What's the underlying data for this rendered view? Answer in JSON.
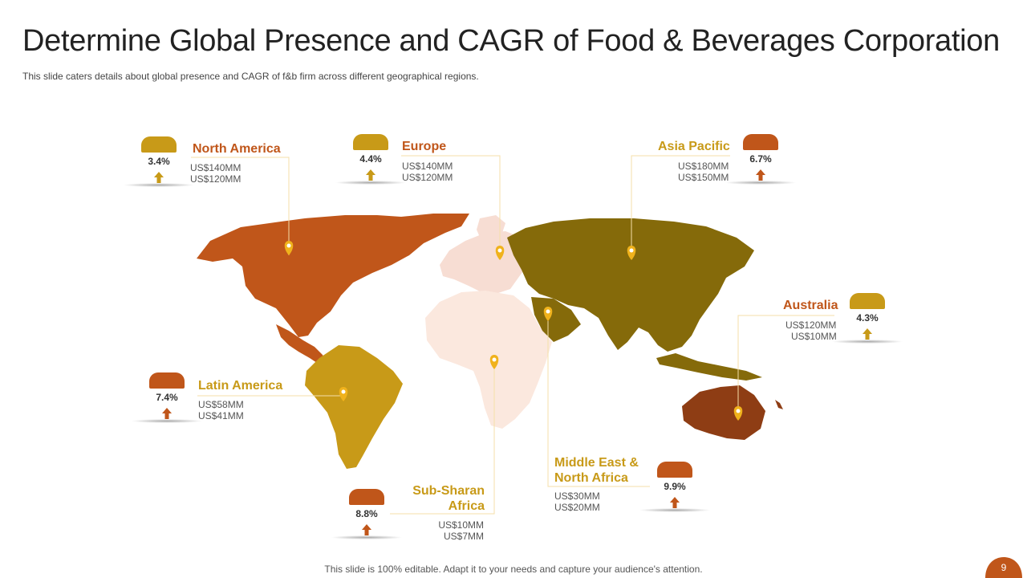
{
  "header": {
    "title": "Determine Global Presence and CAGR of Food & Beverages Corporation",
    "subtitle": "This slide caters details about global presence and CAGR of f&b firm across different geographical regions."
  },
  "colors": {
    "orange": "#C0561A",
    "gold": "#C89A18",
    "olive": "#856A0A",
    "brown": "#8E3D14",
    "light_peach": "#FBE8DE",
    "light_pink": "#F7DDD3",
    "pin": "#F0B21C",
    "connector": "#F5DFA8"
  },
  "regions": {
    "north_america": {
      "name": "North America",
      "cagr": "3.4%",
      "value_1": "US$140MM",
      "value_2": "US$120MM"
    },
    "europe": {
      "name": "Europe",
      "cagr": "4.4%",
      "value_1": "US$140MM",
      "value_2": "US$120MM"
    },
    "asia_pacific": {
      "name": "Asia Pacific",
      "cagr": "6.7%",
      "value_1": "US$180MM",
      "value_2": "US$150MM"
    },
    "australia": {
      "name": "Australia",
      "cagr": "4.3%",
      "value_1": "US$120MM",
      "value_2": "US$10MM"
    },
    "latin_america": {
      "name": "Latin America",
      "cagr": "7.4%",
      "value_1": "US$58MM",
      "value_2": "US$41MM"
    },
    "sub_saharan_africa": {
      "name_line_1": "Sub-Sharan",
      "name_line_2": "Africa",
      "cagr": "8.8%",
      "value_1": "US$10MM",
      "value_2": "US$7MM"
    },
    "middle_east": {
      "name_line_1": "Middle East &",
      "name_line_2": "North Africa",
      "cagr": "9.9%",
      "value_1": "US$30MM",
      "value_2": "US$20MM"
    }
  },
  "footer": {
    "note": "This slide is 100% editable. Adapt it to your needs and capture your audience's attention.",
    "page_number": "9"
  }
}
